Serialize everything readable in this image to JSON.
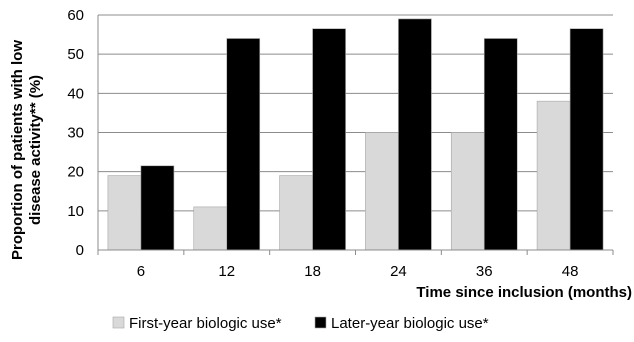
{
  "chart_data": {
    "type": "bar",
    "categories": [
      "6",
      "12",
      "18",
      "24",
      "36",
      "48"
    ],
    "series": [
      {
        "name": "First-year biologic use*",
        "values": [
          19,
          11,
          19,
          30,
          30,
          38
        ],
        "color": "#d9d9d9"
      },
      {
        "name": "Later-year biologic use*",
        "values": [
          21.5,
          54,
          56.5,
          59,
          54,
          56.5
        ],
        "color": "#000000"
      }
    ],
    "title": "",
    "xlabel": "Time since inclusion (months)",
    "ylabel": "Proportion of patients with low disease activity** (%)",
    "ylim": [
      0,
      60
    ],
    "yticks": [
      0,
      10,
      20,
      30,
      40,
      50,
      60
    ],
    "grid": true,
    "legend_position": "bottom"
  }
}
